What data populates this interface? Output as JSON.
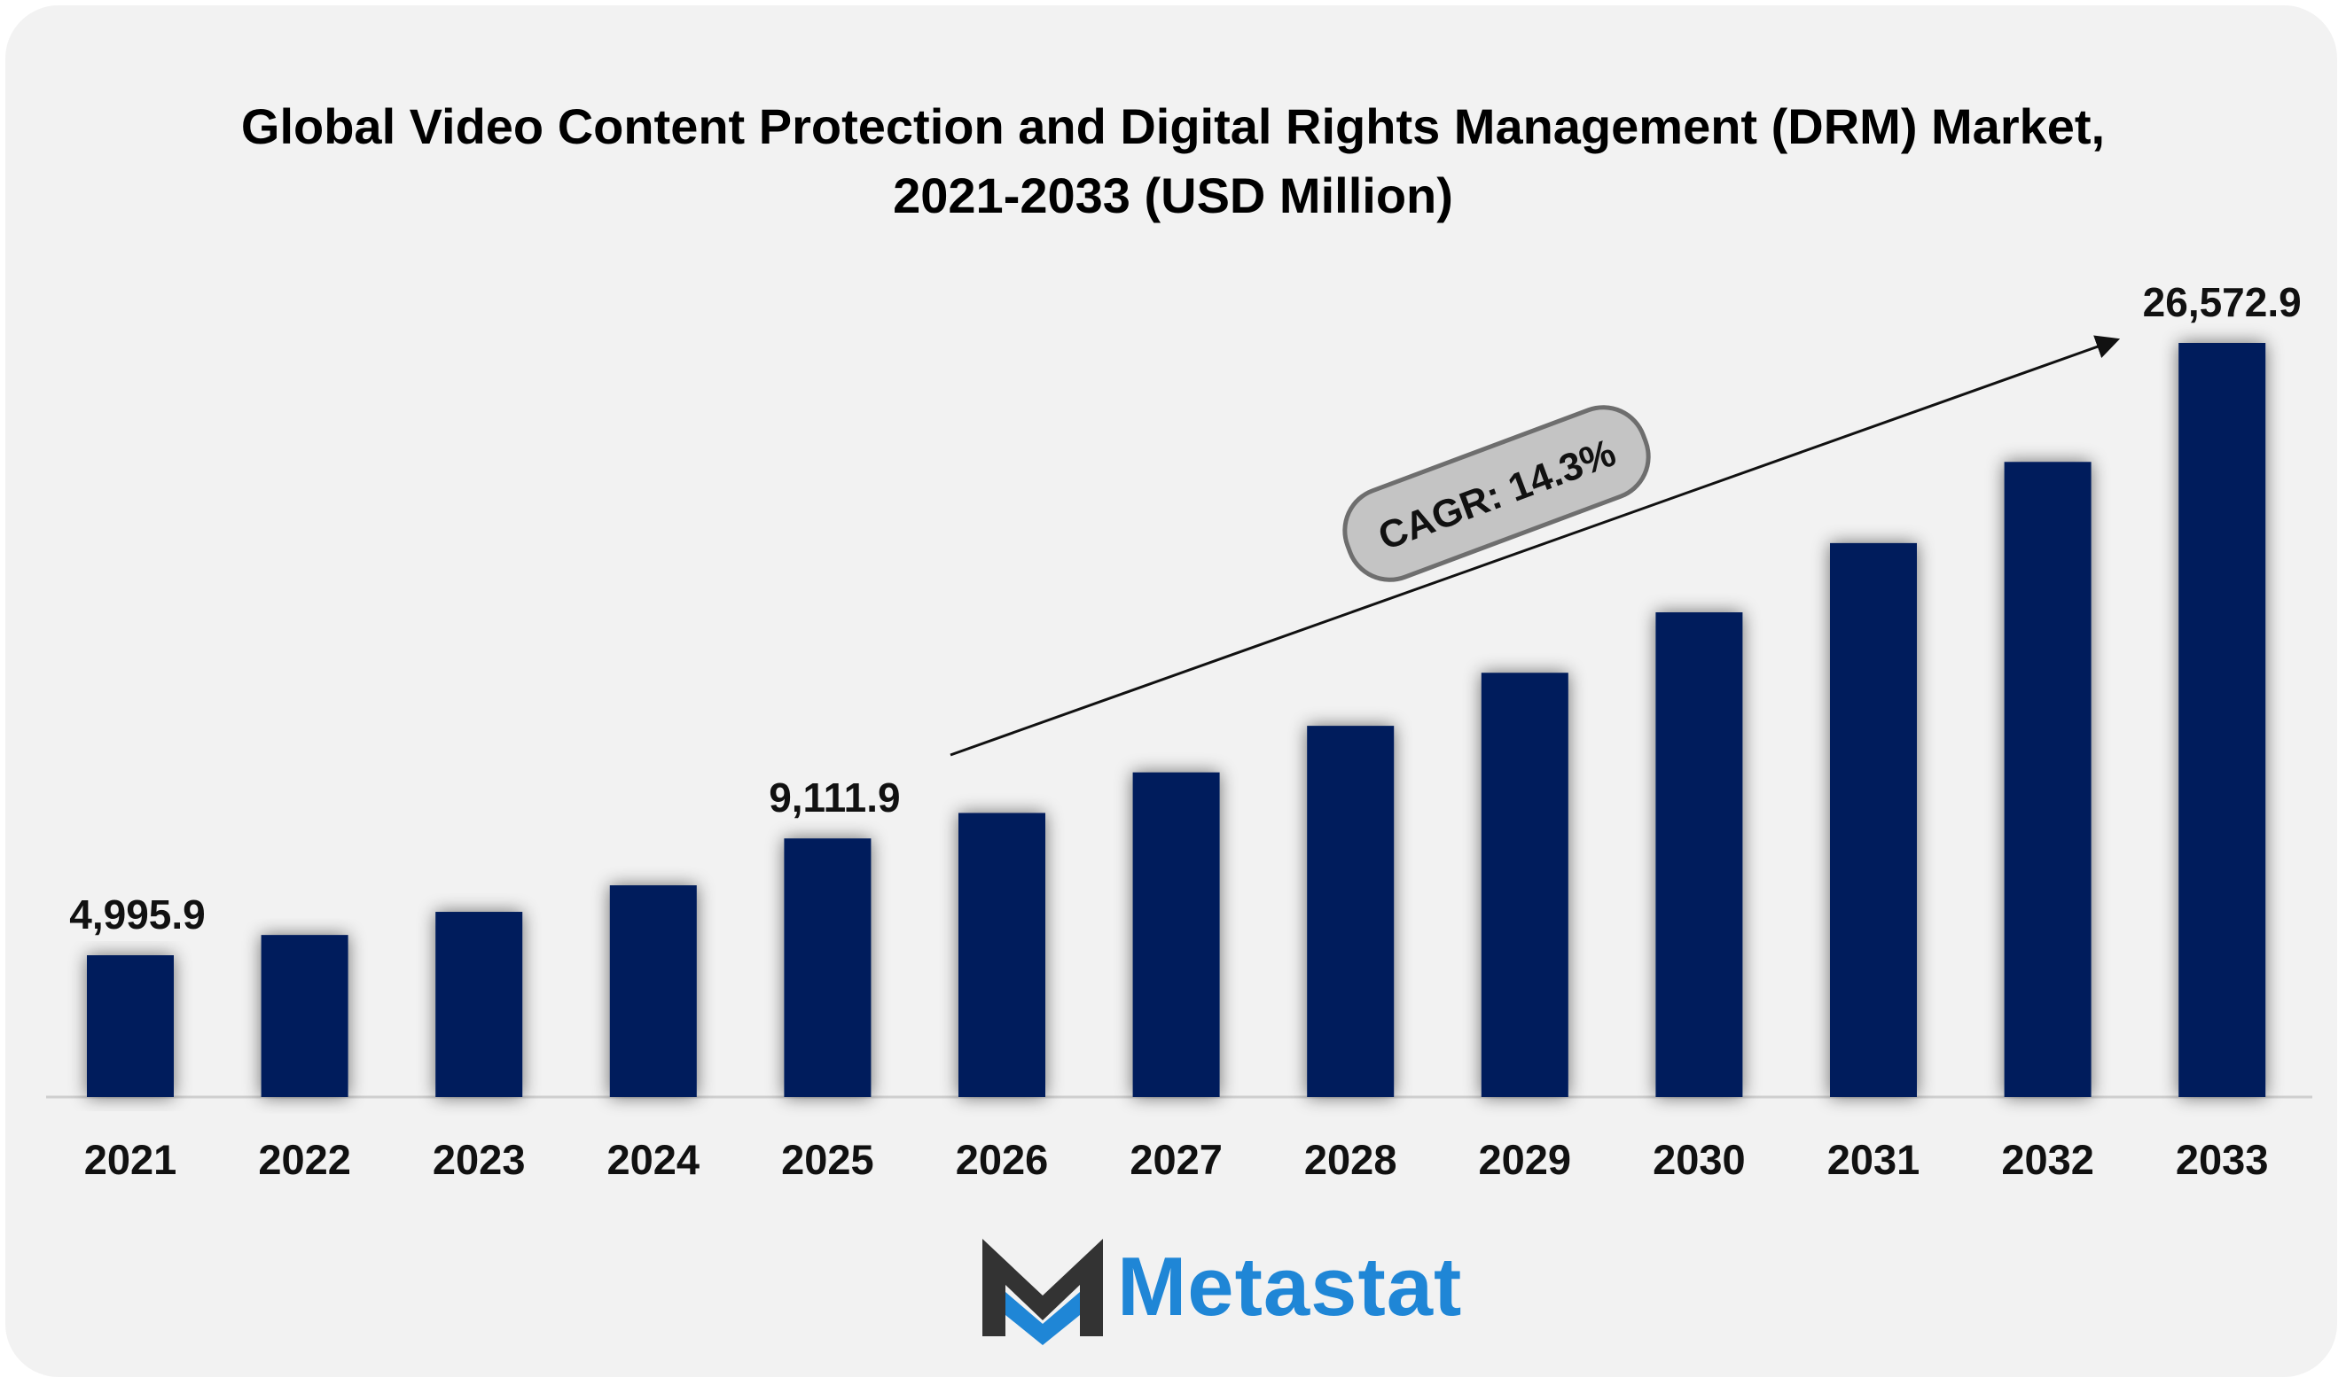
{
  "chart_data": {
    "type": "bar",
    "title": "Global Video Content Protection and Digital Rights Management (DRM) Market,",
    "subtitle": "2021-2033 (USD Million)",
    "categories": [
      "2021",
      "2022",
      "2023",
      "2024",
      "2025",
      "2026",
      "2027",
      "2028",
      "2029",
      "2030",
      "2031",
      "2032",
      "2033"
    ],
    "values": [
      4995.9,
      5710,
      6525,
      7460,
      9111.9,
      10010,
      11440,
      13080,
      14950,
      17080,
      19520,
      22380,
      26572.9
    ],
    "data_labels": [
      {
        "index": 0,
        "text": "4,995.9"
      },
      {
        "index": 4,
        "text": "9,111.9"
      },
      {
        "index": 12,
        "text": "26,572.9"
      }
    ],
    "annotation": "CAGR: 14.3%",
    "ylim": [
      0,
      26572.9
    ],
    "bar_color": "#001f5c",
    "xlabel": "",
    "ylabel": "",
    "grid": false,
    "legend": "none"
  },
  "brand": {
    "name": "Metastat",
    "color": "#1f86d6",
    "mark_dark": "#333333"
  }
}
